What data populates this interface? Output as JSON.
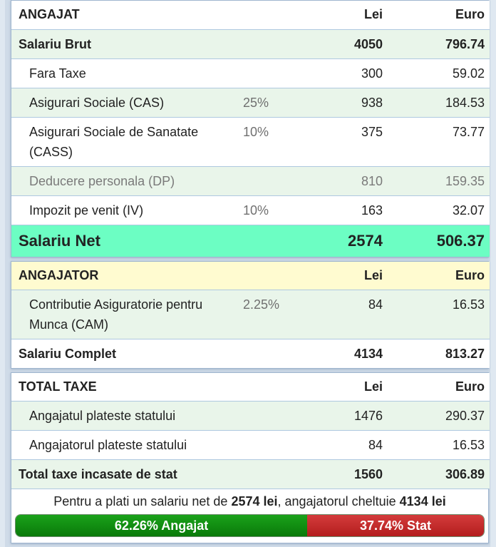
{
  "angajat": {
    "header": {
      "label": "ANGAJAT",
      "lei": "Lei",
      "euro": "Euro"
    },
    "rows": [
      {
        "label": "Salariu Brut",
        "pct": "",
        "lei": "4050",
        "euro": "796.74"
      },
      {
        "label": "Fara Taxe",
        "pct": "",
        "lei": "300",
        "euro": "59.02"
      },
      {
        "label": "Asigurari Sociale (CAS)",
        "pct": "25%",
        "lei": "938",
        "euro": "184.53"
      },
      {
        "label": "Asigurari Sociale de Sanatate (CASS)",
        "pct": "10%",
        "lei": "375",
        "euro": "73.77"
      },
      {
        "label": "Deducere personala (DP)",
        "pct": "",
        "lei": "810",
        "euro": "159.35"
      },
      {
        "label": "Impozit pe venit (IV)",
        "pct": "10%",
        "lei": "163",
        "euro": "32.07"
      }
    ],
    "net": {
      "label": "Salariu Net",
      "lei": "2574",
      "euro": "506.37"
    }
  },
  "angajator": {
    "header": {
      "label": "ANGAJATOR",
      "lei": "Lei",
      "euro": "Euro"
    },
    "rows": [
      {
        "label": "Contributie Asiguratorie pentru Munca (CAM)",
        "pct": "2.25%",
        "lei": "84",
        "euro": "16.53"
      }
    ],
    "total": {
      "label": "Salariu Complet",
      "lei": "4134",
      "euro": "813.27"
    }
  },
  "total_taxe": {
    "header": {
      "label": "TOTAL TAXE",
      "lei": "Lei",
      "euro": "Euro"
    },
    "rows": [
      {
        "label": "Angajatul plateste statului",
        "lei": "1476",
        "euro": "290.37"
      },
      {
        "label": "Angajatorul plateste statului",
        "lei": "84",
        "euro": "16.53"
      }
    ],
    "total": {
      "label": "Total taxe incasate de stat",
      "lei": "1560",
      "euro": "306.89"
    }
  },
  "summary": {
    "prefix": "Pentru a plati un salariu net de",
    "net": "2574 lei",
    "middle": ", angajatorul cheltuie",
    "cost": "4134 lei"
  },
  "split": {
    "angajat_label": "62.26% Angajat",
    "angajat_pct": 62.26,
    "stat_label": "37.74% Stat",
    "stat_pct": 37.74,
    "colors": {
      "angajat": "#0f8a0f",
      "stat": "#c62828"
    }
  }
}
